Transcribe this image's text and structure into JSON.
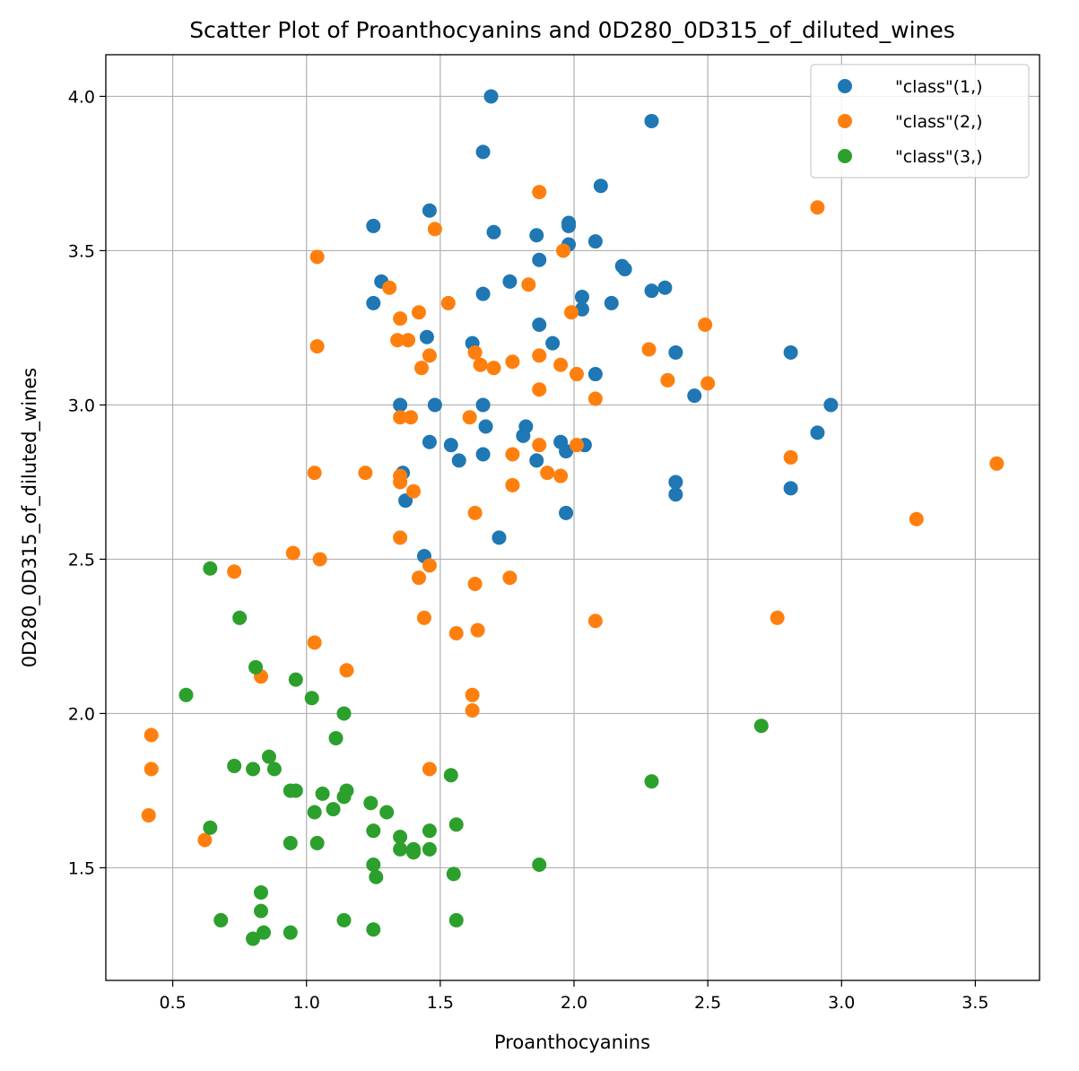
{
  "chart_data": {
    "type": "scatter",
    "title": "Scatter Plot of Proanthocyanins and 0D280_0D315_of_diluted_wines",
    "xlabel": "Proanthocyanins",
    "ylabel": "0D280_0D315_of_diluted_wines",
    "xlim": [
      0.25,
      3.74
    ],
    "ylim": [
      1.135,
      4.135
    ],
    "xticks": [
      "0.5",
      "1.0",
      "1.5",
      "2.0",
      "2.5",
      "3.0",
      "3.5"
    ],
    "yticks": [
      "1.5",
      "2.0",
      "2.5",
      "3.0",
      "3.5",
      "4.0"
    ],
    "grid": true,
    "legend_position": "top-right",
    "series": [
      {
        "name": "\"class\"(1,)",
        "color": "#1f77b4",
        "points": [
          [
            1.69,
            4.0
          ],
          [
            2.29,
            3.92
          ],
          [
            1.66,
            3.82
          ],
          [
            2.1,
            3.71
          ],
          [
            1.46,
            3.63
          ],
          [
            1.25,
            3.58
          ],
          [
            1.98,
            3.59
          ],
          [
            1.98,
            3.58
          ],
          [
            1.7,
            3.56
          ],
          [
            1.86,
            3.55
          ],
          [
            2.08,
            3.53
          ],
          [
            1.98,
            3.52
          ],
          [
            1.87,
            3.47
          ],
          [
            2.18,
            3.45
          ],
          [
            2.19,
            3.44
          ],
          [
            1.28,
            3.4
          ],
          [
            1.76,
            3.4
          ],
          [
            2.34,
            3.38
          ],
          [
            2.29,
            3.37
          ],
          [
            1.66,
            3.36
          ],
          [
            2.03,
            3.35
          ],
          [
            1.25,
            3.33
          ],
          [
            2.14,
            3.33
          ],
          [
            2.03,
            3.31
          ],
          [
            1.87,
            3.26
          ],
          [
            1.45,
            3.22
          ],
          [
            1.62,
            3.2
          ],
          [
            1.92,
            3.2
          ],
          [
            2.81,
            3.17
          ],
          [
            2.38,
            3.17
          ],
          [
            2.08,
            3.1
          ],
          [
            2.45,
            3.03
          ],
          [
            1.35,
            3.0
          ],
          [
            1.48,
            3.0
          ],
          [
            1.66,
            3.0
          ],
          [
            2.96,
            3.0
          ],
          [
            1.67,
            2.93
          ],
          [
            1.82,
            2.93
          ],
          [
            2.91,
            2.91
          ],
          [
            1.81,
            2.9
          ],
          [
            1.46,
            2.88
          ],
          [
            1.95,
            2.88
          ],
          [
            1.54,
            2.87
          ],
          [
            2.04,
            2.87
          ],
          [
            1.97,
            2.85
          ],
          [
            1.66,
            2.84
          ],
          [
            1.57,
            2.82
          ],
          [
            1.86,
            2.82
          ],
          [
            1.36,
            2.78
          ],
          [
            2.38,
            2.75
          ],
          [
            2.81,
            2.73
          ],
          [
            2.38,
            2.71
          ],
          [
            1.37,
            2.69
          ],
          [
            1.97,
            2.65
          ],
          [
            1.72,
            2.57
          ],
          [
            1.44,
            2.51
          ]
        ]
      },
      {
        "name": "\"class\"(2,)",
        "color": "#ff7f0e",
        "points": [
          [
            1.87,
            3.69
          ],
          [
            2.91,
            3.64
          ],
          [
            1.48,
            3.57
          ],
          [
            1.96,
            3.5
          ],
          [
            1.04,
            3.48
          ],
          [
            1.83,
            3.39
          ],
          [
            1.31,
            3.38
          ],
          [
            1.53,
            3.33
          ],
          [
            1.42,
            3.3
          ],
          [
            1.99,
            3.3
          ],
          [
            1.35,
            3.28
          ],
          [
            2.49,
            3.26
          ],
          [
            1.34,
            3.21
          ],
          [
            1.38,
            3.21
          ],
          [
            1.04,
            3.19
          ],
          [
            2.28,
            3.18
          ],
          [
            1.63,
            3.17
          ],
          [
            1.46,
            3.16
          ],
          [
            1.87,
            3.16
          ],
          [
            1.77,
            3.14
          ],
          [
            1.65,
            3.13
          ],
          [
            1.95,
            3.13
          ],
          [
            1.43,
            3.12
          ],
          [
            1.7,
            3.12
          ],
          [
            2.01,
            3.1
          ],
          [
            2.35,
            3.08
          ],
          [
            2.5,
            3.07
          ],
          [
            1.87,
            3.05
          ],
          [
            2.08,
            3.02
          ],
          [
            1.35,
            2.96
          ],
          [
            1.39,
            2.96
          ],
          [
            1.61,
            2.96
          ],
          [
            1.87,
            2.87
          ],
          [
            2.01,
            2.87
          ],
          [
            1.77,
            2.84
          ],
          [
            2.81,
            2.83
          ],
          [
            3.58,
            2.81
          ],
          [
            1.03,
            2.78
          ],
          [
            1.22,
            2.78
          ],
          [
            1.9,
            2.78
          ],
          [
            1.35,
            2.77
          ],
          [
            1.95,
            2.77
          ],
          [
            1.35,
            2.75
          ],
          [
            1.77,
            2.74
          ],
          [
            1.4,
            2.72
          ],
          [
            1.63,
            2.65
          ],
          [
            3.28,
            2.63
          ],
          [
            1.35,
            2.57
          ],
          [
            0.95,
            2.52
          ],
          [
            1.05,
            2.5
          ],
          [
            1.46,
            2.48
          ],
          [
            0.73,
            2.46
          ],
          [
            1.42,
            2.44
          ],
          [
            1.76,
            2.44
          ],
          [
            1.63,
            2.42
          ],
          [
            1.44,
            2.31
          ],
          [
            2.76,
            2.31
          ],
          [
            2.08,
            2.3
          ],
          [
            1.64,
            2.27
          ],
          [
            1.56,
            2.26
          ],
          [
            1.03,
            2.23
          ],
          [
            1.15,
            2.14
          ],
          [
            0.83,
            2.12
          ],
          [
            1.62,
            2.06
          ],
          [
            1.62,
            2.01
          ],
          [
            0.42,
            1.93
          ],
          [
            0.42,
            1.82
          ],
          [
            1.46,
            1.82
          ],
          [
            0.41,
            1.67
          ],
          [
            0.62,
            1.59
          ]
        ]
      },
      {
        "name": "\"class\"(3,)",
        "color": "#2ca02c",
        "points": [
          [
            0.64,
            2.47
          ],
          [
            0.75,
            2.31
          ],
          [
            0.81,
            2.15
          ],
          [
            0.96,
            2.11
          ],
          [
            0.55,
            2.06
          ],
          [
            1.02,
            2.05
          ],
          [
            1.14,
            2.0
          ],
          [
            2.7,
            1.96
          ],
          [
            1.11,
            1.92
          ],
          [
            0.86,
            1.86
          ],
          [
            0.73,
            1.83
          ],
          [
            0.8,
            1.82
          ],
          [
            0.88,
            1.82
          ],
          [
            1.54,
            1.8
          ],
          [
            2.29,
            1.78
          ],
          [
            0.94,
            1.75
          ],
          [
            0.96,
            1.75
          ],
          [
            1.15,
            1.75
          ],
          [
            1.06,
            1.74
          ],
          [
            1.14,
            1.73
          ],
          [
            1.24,
            1.71
          ],
          [
            1.1,
            1.69
          ],
          [
            1.03,
            1.68
          ],
          [
            1.3,
            1.68
          ],
          [
            1.56,
            1.64
          ],
          [
            0.64,
            1.63
          ],
          [
            1.25,
            1.62
          ],
          [
            1.46,
            1.62
          ],
          [
            1.35,
            1.6
          ],
          [
            0.94,
            1.58
          ],
          [
            1.04,
            1.58
          ],
          [
            1.35,
            1.56
          ],
          [
            1.4,
            1.56
          ],
          [
            1.46,
            1.56
          ],
          [
            1.4,
            1.55
          ],
          [
            1.25,
            1.51
          ],
          [
            1.87,
            1.51
          ],
          [
            1.55,
            1.48
          ],
          [
            1.26,
            1.47
          ],
          [
            0.83,
            1.42
          ],
          [
            0.83,
            1.36
          ],
          [
            0.68,
            1.33
          ],
          [
            1.14,
            1.33
          ],
          [
            1.56,
            1.33
          ],
          [
            1.25,
            1.3
          ],
          [
            0.84,
            1.29
          ],
          [
            0.94,
            1.29
          ],
          [
            0.8,
            1.27
          ]
        ]
      }
    ]
  }
}
